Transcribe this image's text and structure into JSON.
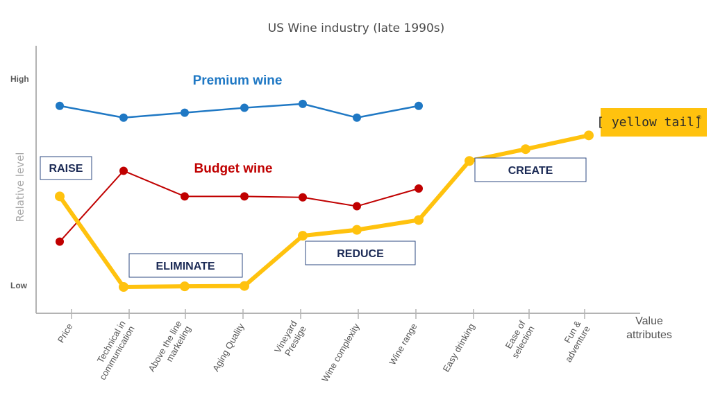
{
  "chart_data": {
    "type": "line",
    "title": "US Wine industry (late 1990s)",
    "ylabel": "Relative level",
    "xlabel": "Value attributes",
    "ytick_labels": [
      "High",
      "Low"
    ],
    "ylim": [
      0,
      100
    ],
    "categories": [
      "Price",
      "Technical in communication",
      "Above the line marketing",
      "Aging Quality",
      "Vineyard Prestige",
      "Wine complexity",
      "Wine range",
      "Easy drinking",
      "Ease of selection",
      "Fun & adventure"
    ],
    "series": [
      {
        "name": "Premium wine",
        "color": "#1f78c4",
        "values": [
          92,
          86,
          88.5,
          91,
          93,
          86,
          92,
          null,
          null,
          null
        ]
      },
      {
        "name": "Budget wine",
        "color": "#c00000",
        "values": [
          23,
          59,
          46,
          46,
          45.5,
          41,
          50,
          null,
          null,
          null
        ]
      },
      {
        "name": "[ yellow tail]®",
        "color": "#ffc20e",
        "values": [
          46,
          0,
          0.3,
          0.5,
          26,
          29,
          34,
          64,
          70,
          77
        ]
      }
    ],
    "annotations": [
      "RAISE",
      "ELIMINATE",
      "REDUCE",
      "CREATE"
    ],
    "grid": false
  },
  "brand": {
    "text": "[ yellow tail]",
    "mark": "®",
    "background": "#ffc20e"
  }
}
